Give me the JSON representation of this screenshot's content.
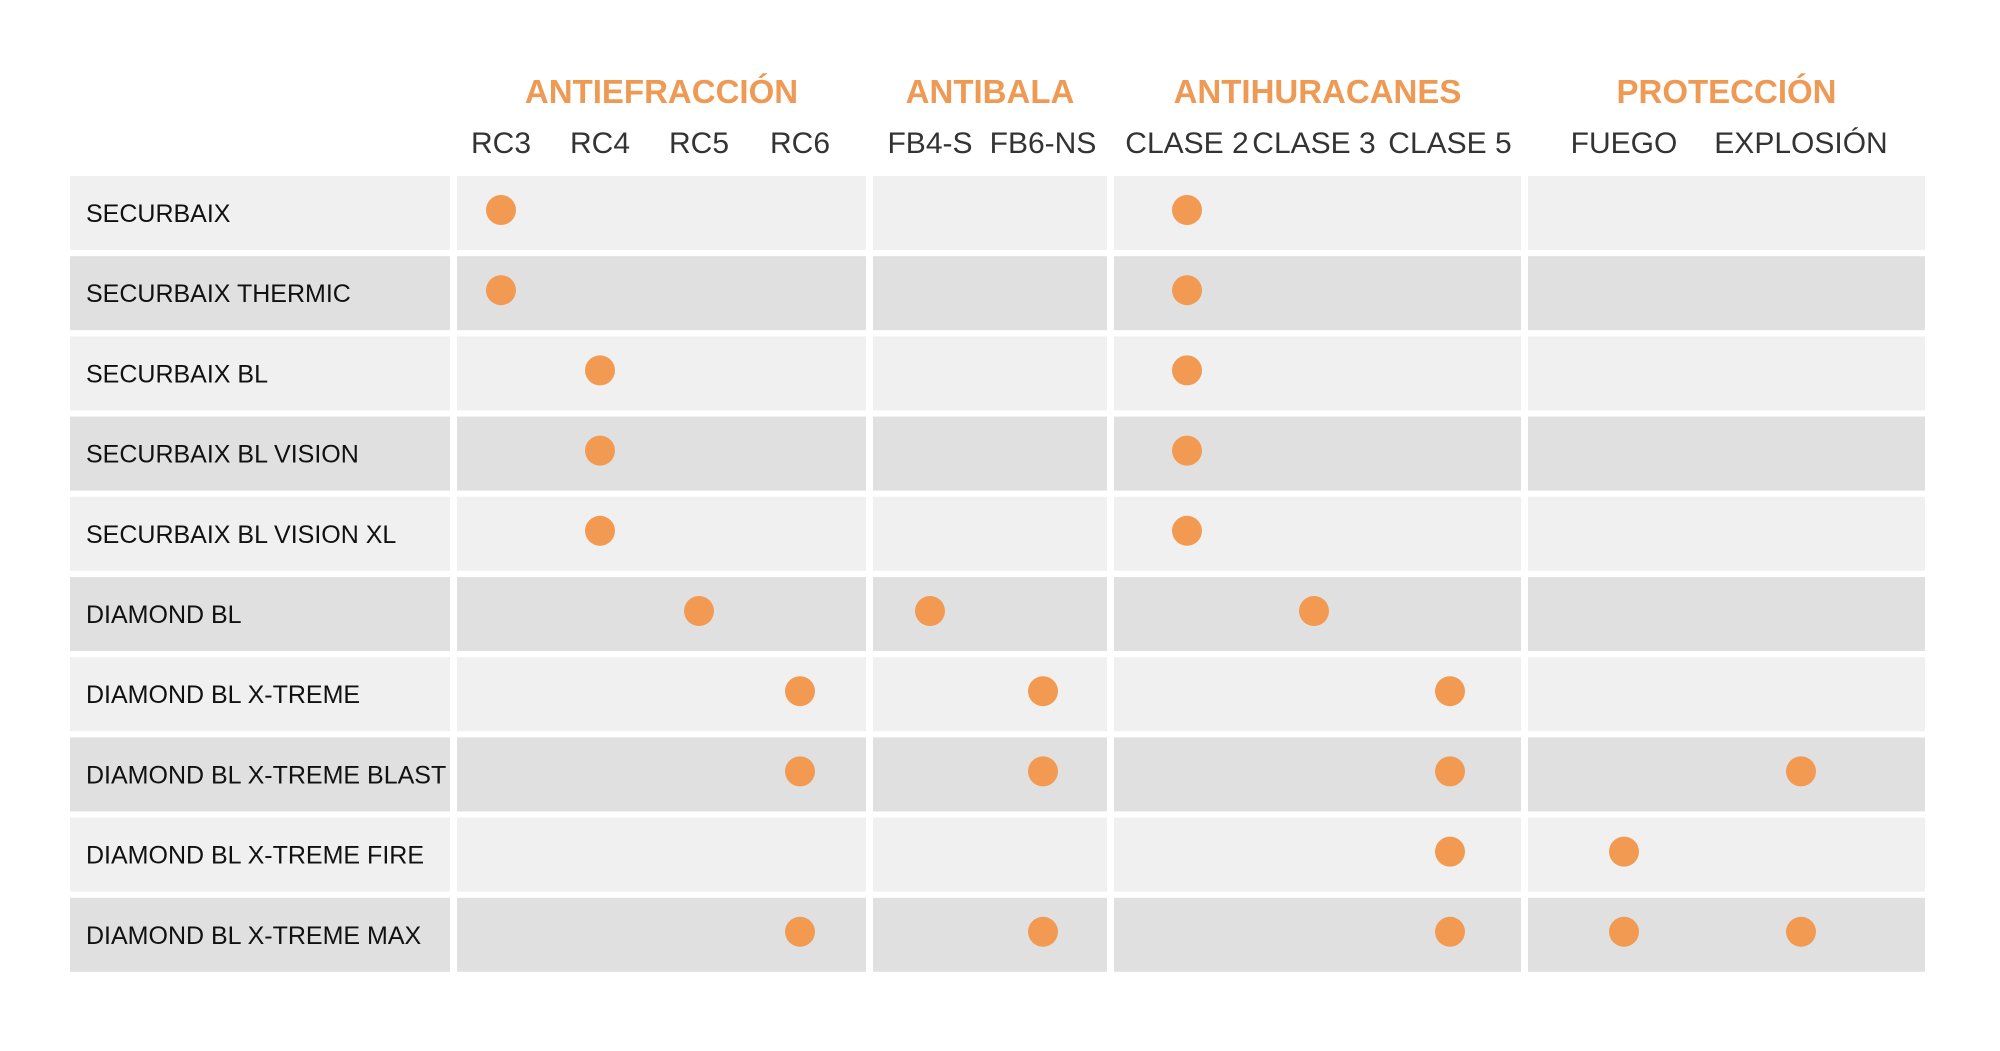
{
  "chart_data": {
    "type": "table",
    "marker_color": "#F29A52",
    "group_title_color": "#EE9A55",
    "row_colors": [
      "#F0F0F0",
      "#E0E0E0"
    ],
    "groups": [
      {
        "name": "ANTIEFRACCIÓN",
        "columns": [
          "RC3",
          "RC4",
          "RC5",
          "RC6"
        ]
      },
      {
        "name": "ANTIBALA",
        "columns": [
          "FB4-S",
          "FB6-NS"
        ]
      },
      {
        "name": "ANTIHURACANES",
        "columns": [
          "CLASE 2",
          "CLASE 3",
          "CLASE 5"
        ]
      },
      {
        "name": "PROTECCIÓN",
        "columns": [
          "FUEGO",
          "EXPLOSIÓN"
        ]
      }
    ],
    "rows": [
      {
        "name": "SECURBAIX",
        "marks": [
          "RC3",
          "CLASE 2"
        ]
      },
      {
        "name": "SECURBAIX THERMIC",
        "marks": [
          "RC3",
          "CLASE 2"
        ]
      },
      {
        "name": "SECURBAIX BL",
        "marks": [
          "RC4",
          "CLASE 2"
        ]
      },
      {
        "name": "SECURBAIX BL VISION",
        "marks": [
          "RC4",
          "CLASE 2"
        ]
      },
      {
        "name": "SECURBAIX BL VISION XL",
        "marks": [
          "RC4",
          "CLASE 2"
        ]
      },
      {
        "name": "DIAMOND BL",
        "marks": [
          "RC5",
          "FB4-S",
          "CLASE 3"
        ]
      },
      {
        "name": "DIAMOND BL X-TREME",
        "marks": [
          "RC6",
          "FB6-NS",
          "CLASE 5"
        ]
      },
      {
        "name": "DIAMOND BL X-TREME BLAST",
        "marks": [
          "RC6",
          "FB6-NS",
          "CLASE 5",
          "EXPLOSIÓN"
        ]
      },
      {
        "name": "DIAMOND BL X-TREME FIRE",
        "marks": [
          "CLASE 5",
          "FUEGO"
        ]
      },
      {
        "name": "DIAMOND BL X-TREME MAX",
        "marks": [
          "RC6",
          "FB6-NS",
          "CLASE 5",
          "FUEGO",
          "EXPLOSIÓN"
        ]
      }
    ]
  }
}
